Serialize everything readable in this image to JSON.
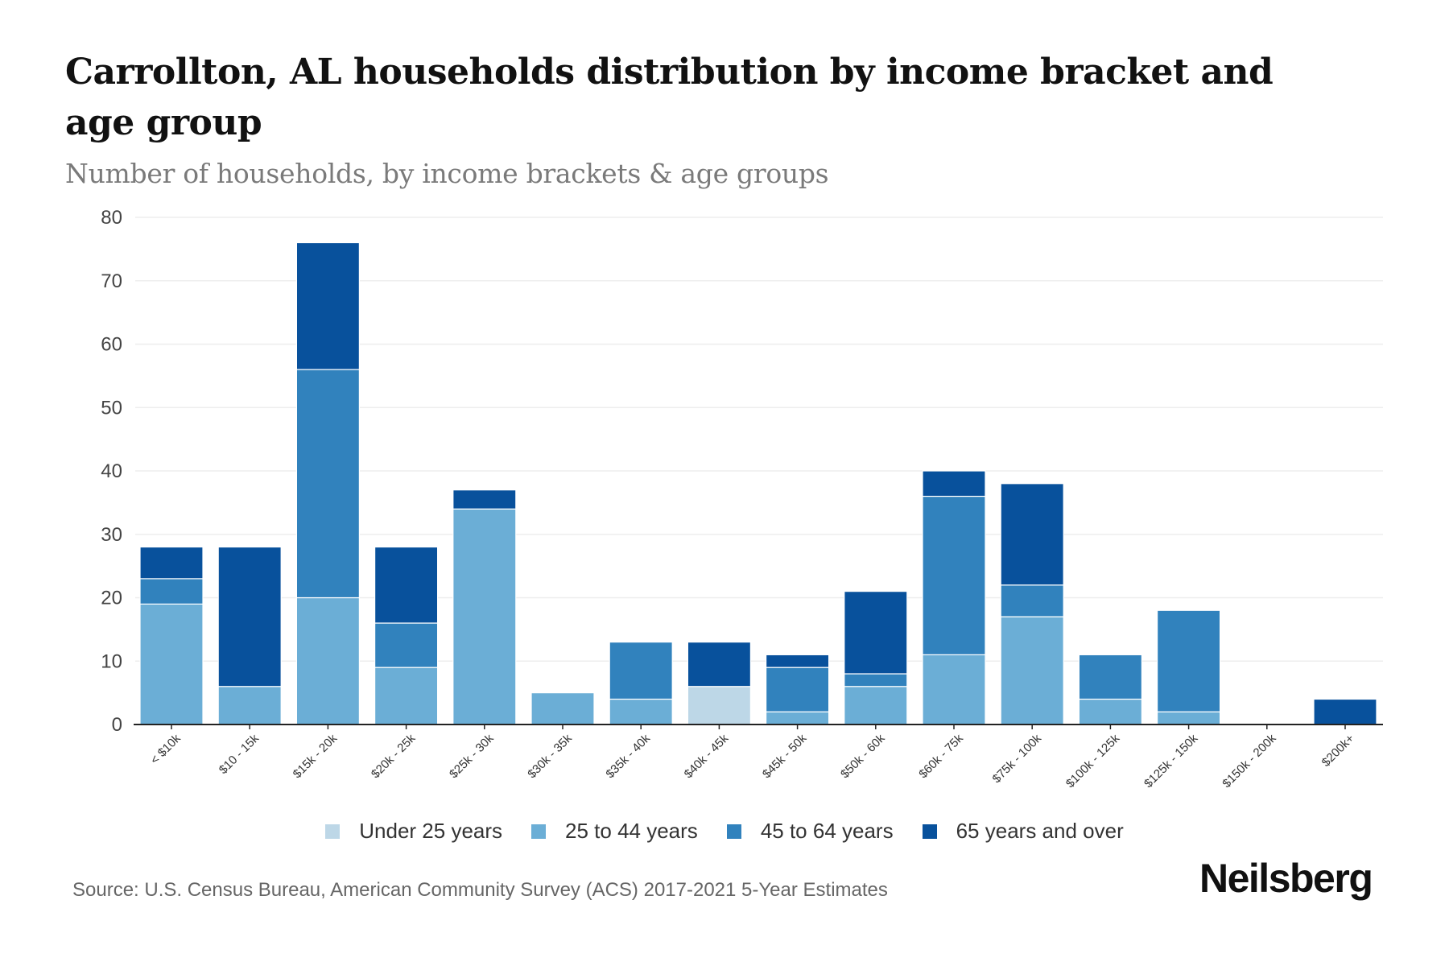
{
  "header": {
    "title": "Carrollton, AL households distribution by income bracket and age group",
    "subtitle": "Number of households, by income brackets & age groups"
  },
  "footer": {
    "source": "Source: U.S. Census Bureau, American Community Survey (ACS) 2017-2021 5-Year Estimates",
    "logo": "Neilsberg"
  },
  "chart_data": {
    "type": "bar",
    "stacked": true,
    "title": "Carrollton, AL households distribution by income bracket and age group",
    "subtitle": "Number of households, by income brackets & age groups",
    "xlabel": "",
    "ylabel": "",
    "ylim": [
      0,
      80
    ],
    "yticks": [
      0,
      10,
      20,
      30,
      40,
      50,
      60,
      70,
      80
    ],
    "grid": true,
    "legend_position": "bottom",
    "categories": [
      "< $10k",
      "$10 - 15k",
      "$15k - 20k",
      "$20k - 25k",
      "$25k - 30k",
      "$30k - 35k",
      "$35k - 40k",
      "$40k - 45k",
      "$45k - 50k",
      "$50k - 60k",
      "$60k - 75k",
      "$75k - 100k",
      "$100k - 125k",
      "$125k - 150k",
      "$150k - 200k",
      "$200k+"
    ],
    "series": [
      {
        "name": "Under 25 years",
        "color": "#bdd7e7",
        "values": [
          0,
          0,
          0,
          0,
          0,
          0,
          0,
          6,
          0,
          0,
          0,
          0,
          0,
          0,
          0,
          0
        ]
      },
      {
        "name": "25 to 44 years",
        "color": "#6baed6",
        "values": [
          19,
          6,
          20,
          9,
          34,
          5,
          4,
          0,
          2,
          6,
          11,
          17,
          4,
          2,
          0,
          0
        ]
      },
      {
        "name": "45 to 64 years",
        "color": "#3182bd",
        "values": [
          4,
          0,
          36,
          7,
          0,
          0,
          9,
          0,
          7,
          2,
          25,
          5,
          7,
          16,
          0,
          0
        ]
      },
      {
        "name": "65 years and over",
        "color": "#08519c",
        "values": [
          5,
          22,
          20,
          12,
          3,
          0,
          0,
          7,
          2,
          13,
          4,
          16,
          0,
          0,
          0,
          4
        ]
      }
    ]
  }
}
